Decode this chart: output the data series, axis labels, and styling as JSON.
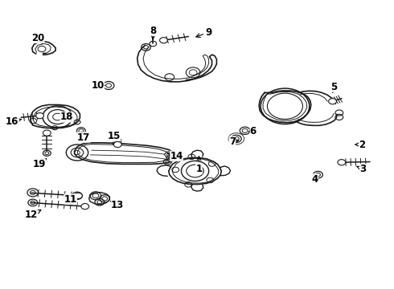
{
  "bg_color": "#ffffff",
  "line_color": "#1a1a1a",
  "text_color": "#000000",
  "fig_width": 4.9,
  "fig_height": 3.6,
  "dpi": 100,
  "label_fs": 8.5,
  "labels": {
    "1": [
      0.505,
      0.415,
      0.505,
      0.47
    ],
    "2": [
      0.92,
      0.5,
      0.895,
      0.5
    ],
    "3": [
      0.922,
      0.415,
      0.9,
      0.428
    ],
    "4": [
      0.8,
      0.38,
      0.8,
      0.392
    ],
    "5": [
      0.848,
      0.7,
      0.845,
      0.678
    ],
    "6": [
      0.643,
      0.545,
      0.63,
      0.545
    ],
    "7": [
      0.59,
      0.51,
      0.614,
      0.517
    ],
    "8": [
      0.388,
      0.895,
      0.388,
      0.855
    ],
    "9": [
      0.53,
      0.89,
      0.49,
      0.87
    ],
    "10": [
      0.248,
      0.705,
      0.268,
      0.705
    ],
    "11": [
      0.178,
      0.31,
      0.195,
      0.327
    ],
    "12": [
      0.078,
      0.255,
      0.11,
      0.278
    ],
    "13": [
      0.298,
      0.29,
      0.278,
      0.305
    ],
    "14": [
      0.448,
      0.46,
      0.425,
      0.468
    ],
    "15": [
      0.288,
      0.53,
      0.295,
      0.512
    ],
    "16": [
      0.03,
      0.58,
      0.06,
      0.59
    ],
    "17": [
      0.212,
      0.525,
      0.205,
      0.545
    ],
    "18": [
      0.168,
      0.595,
      0.158,
      0.608
    ],
    "19": [
      0.098,
      0.432,
      0.118,
      0.452
    ],
    "20": [
      0.095,
      0.87,
      0.108,
      0.848
    ]
  }
}
